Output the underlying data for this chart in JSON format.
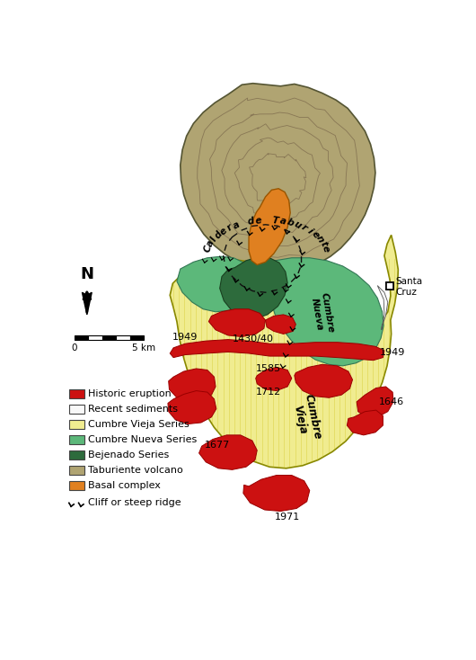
{
  "colors": {
    "taburiente": "#b0a472",
    "basal_complex": "#e08020",
    "bejenado": "#2d6b3c",
    "cumbre_nueva": "#5cb87a",
    "cumbre_vieja": "#f0ec90",
    "historic_eruption": "#cc1111",
    "recent_sediments": "#f8f8f8",
    "outline": "#222222",
    "background": "#ffffff"
  },
  "legend_items": [
    {
      "label": "Historic eruption",
      "color": "#cc1111"
    },
    {
      "label": "Recent sediments",
      "color": "#f8f8f8"
    },
    {
      "label": "Cumbre Vieja Series",
      "color": "#f0ec90"
    },
    {
      "label": "Cumbre Nueva Series",
      "color": "#5cb87a"
    },
    {
      "label": "Bejenado Series",
      "color": "#2d6b3c"
    },
    {
      "label": "Taburiente volcano",
      "color": "#b0a472"
    },
    {
      "label": "Basal complex",
      "color": "#e08020"
    }
  ]
}
